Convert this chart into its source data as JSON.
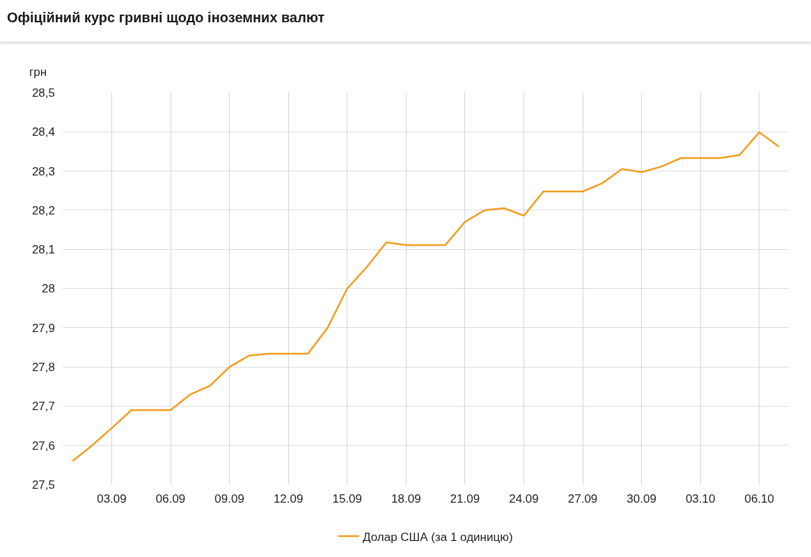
{
  "chart_data": {
    "type": "line",
    "title": "Офіційний курс гривні щодо іноземних валют",
    "ylabel": "грн",
    "x": [
      "--09-01",
      "--09-02",
      "--09-03",
      "--09-04",
      "--09-05",
      "--09-06",
      "--09-07",
      "--09-08",
      "--09-09",
      "--09-10",
      "--09-11",
      "--09-12",
      "--09-13",
      "--09-14",
      "--09-15",
      "--09-16",
      "--09-17",
      "--09-18",
      "--09-19",
      "--09-20",
      "--09-21",
      "--09-22",
      "--09-23",
      "--09-24",
      "--09-25",
      "--09-26",
      "--09-27",
      "--09-28",
      "--09-29",
      "--09-30",
      "--10-01",
      "--10-02",
      "--10-03",
      "--10-04",
      "--10-05",
      "--10-06",
      "--10-07"
    ],
    "series": [
      {
        "name": "Долар США (за 1 одиницю)",
        "color": "#f39c1f",
        "values": [
          27.56,
          27.6,
          27.644,
          27.69,
          27.69,
          27.69,
          27.73,
          27.752,
          27.8,
          27.829,
          27.834,
          27.834,
          27.834,
          27.9,
          28.0,
          28.055,
          28.118,
          28.111,
          28.111,
          28.111,
          28.17,
          28.2,
          28.205,
          28.186,
          28.248,
          28.248,
          28.248,
          28.269,
          28.305,
          28.297,
          28.311,
          28.333,
          28.333,
          28.333,
          28.341,
          28.399,
          28.362
        ]
      }
    ],
    "xlim": [
      "--08-31T12:00",
      "--10-07T12:00"
    ],
    "xticks": [
      {
        "value": "--09-03",
        "label": "03.09"
      },
      {
        "value": "--09-06",
        "label": "06.09"
      },
      {
        "value": "--09-09",
        "label": "09.09"
      },
      {
        "value": "--09-12",
        "label": "12.09"
      },
      {
        "value": "--09-15",
        "label": "15.09"
      },
      {
        "value": "--09-18",
        "label": "18.09"
      },
      {
        "value": "--09-21",
        "label": "21.09"
      },
      {
        "value": "--09-24",
        "label": "24.09"
      },
      {
        "value": "--09-27",
        "label": "27.09"
      },
      {
        "value": "--09-30",
        "label": "30.09"
      },
      {
        "value": "--10-03",
        "label": "03.10"
      },
      {
        "value": "--10-06",
        "label": "06.10"
      }
    ],
    "ylim": [
      27.5,
      28.5
    ],
    "yticks": [
      {
        "value": 27.5,
        "label": "27,5"
      },
      {
        "value": 27.6,
        "label": "27,6"
      },
      {
        "value": 27.7,
        "label": "27,7"
      },
      {
        "value": 27.8,
        "label": "27,8"
      },
      {
        "value": 27.9,
        "label": "27,9"
      },
      28,
      {
        "value": 28.1,
        "label": "28,1"
      },
      {
        "value": 28.2,
        "label": "28,2"
      },
      {
        "value": 28.3,
        "label": "28,3"
      },
      {
        "value": 28.4,
        "label": "28,4"
      },
      {
        "value": 28.5,
        "label": "28,5"
      }
    ],
    "grid": true,
    "legend": "bottom"
  }
}
